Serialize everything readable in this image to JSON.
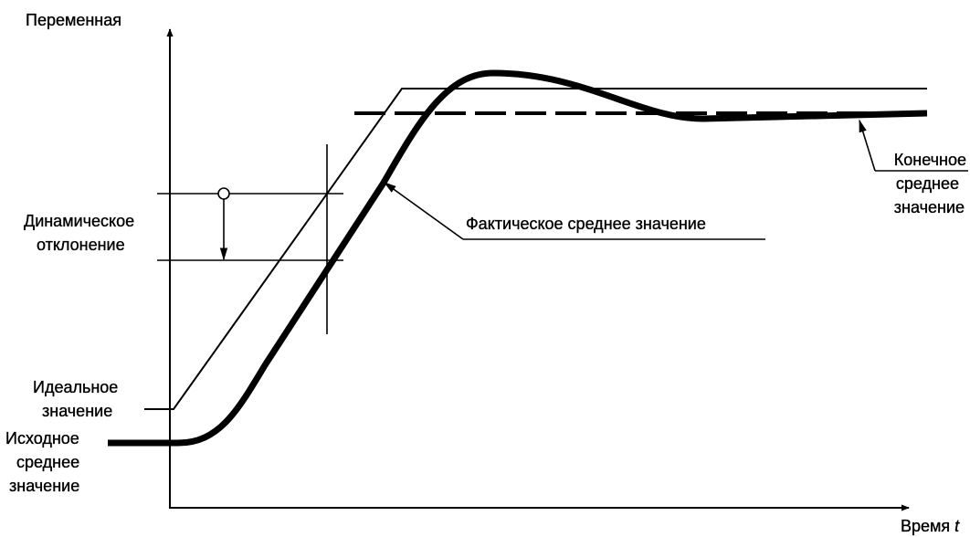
{
  "axes": {
    "y_label": "Переменная",
    "x_label": "Время",
    "x_symbol": "t"
  },
  "labels": {
    "dynamic_deviation": [
      "Динамическое",
      "отклонение"
    ],
    "actual_mean": "Фактическое среднее значение",
    "final_mean": [
      "Конечное",
      "среднее",
      "значение"
    ],
    "ideal": [
      "Идеальное",
      "значение"
    ],
    "initial_mean": [
      "Исходное",
      "среднее",
      "значение"
    ]
  }
}
